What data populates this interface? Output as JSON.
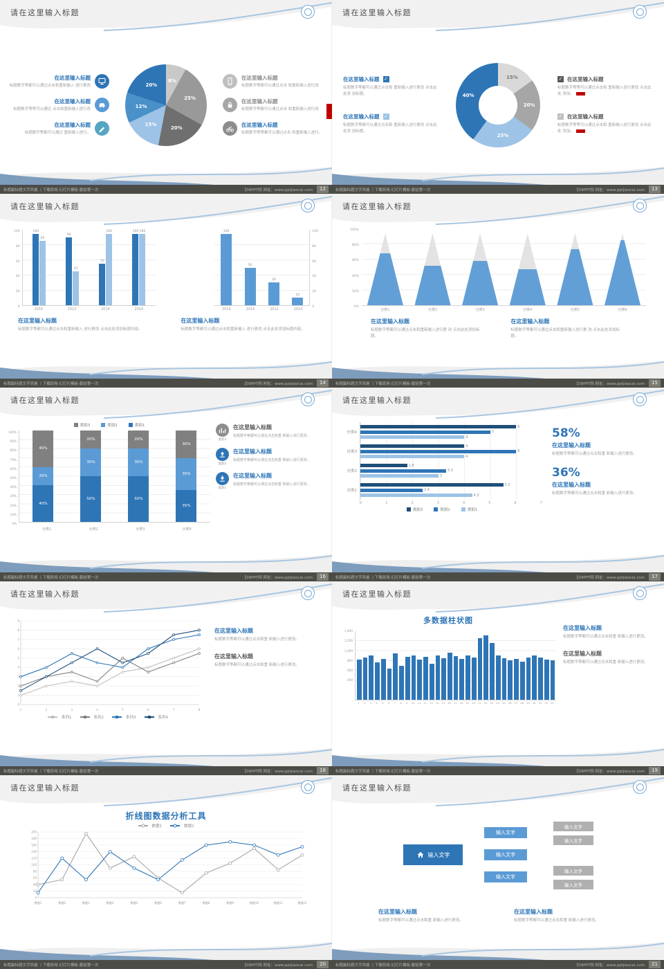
{
  "colors": {
    "accent": "#2e75b6",
    "accent_mid": "#5b9bd5",
    "accent_light": "#9dc3e6",
    "dark_blue": "#1f4e79",
    "gray": "#8c8c8c",
    "red": "#c00000"
  },
  "page": {
    "footer_left": "标题副标题文字风格 丨下载即用·幻灯片模板·献给第一次",
    "footer_right": "【09PPT网 网址：www.pptjiaocai.com"
  },
  "slides": [
    {
      "title": "请在这里输入标题",
      "page": "12",
      "type": "pie_callouts",
      "left_items": [
        {
          "heading": "在这里输入标题",
          "body": "标题数字等都可以通过点击和重新输入 进行更改",
          "icon": "monitor-icon",
          "icon_color": "#2e75b6"
        },
        {
          "heading": "在这里输入标题",
          "body": "标题数字等等可以通过 点击和重新输入进行改",
          "icon": "car-icon",
          "icon_color": "#5b9bd5"
        },
        {
          "heading": "在这里输入标题",
          "body": "标题数字等都可以通过 重新输入进行。",
          "icon": "pen-icon",
          "icon_color": "#56a6c3"
        }
      ],
      "right_items": [
        {
          "heading": "在这里输入标题",
          "body": "标题数字等都可以通过点击 和重新输入进行改",
          "icon": "phone-icon",
          "icon_color": "#bfbfbf",
          "muted": true
        },
        {
          "heading": "在这里输入标题",
          "body": "标题数字等都可以通过点击 和重新输入进行改",
          "icon": "lock-icon",
          "icon_color": "#a6a6a6",
          "muted": true
        },
        {
          "heading": "在这里输入标题",
          "body": "标题数字等等都可以通过点击 和重新输入进行。",
          "icon": "bike-icon",
          "icon_color": "#8c8c8c",
          "muted": false
        }
      ],
      "chart_data": {
        "type": "pie",
        "slices": [
          {
            "label": "8%",
            "value": 8,
            "color": "#c9c9c9"
          },
          {
            "label": "25%",
            "value": 25,
            "color": "#999999"
          },
          {
            "label": "20%",
            "value": 20,
            "color": "#6f6f6f"
          },
          {
            "label": "15%",
            "value": 15,
            "color": "#9dc3e6"
          },
          {
            "label": "12%",
            "value": 12,
            "color": "#4a90c9"
          },
          {
            "label": "20%",
            "value": 20,
            "color": "#2e75b6"
          }
        ]
      }
    },
    {
      "title": "请在这里输入标题",
      "page": "13",
      "type": "donut_checks",
      "left_items": [
        {
          "heading": "在这里输入标题",
          "body": "标题数字等都可以通过点击和 重新输入进行更改 点击此处添 加标题。",
          "check_color": "#2e75b6"
        },
        {
          "heading": "在这里输入标题",
          "body": "标题数字等都可以通过点击和 重新输入进行更改 点击此处添 加标题。",
          "check_color": "#9dc3e6"
        }
      ],
      "right_items": [
        {
          "heading": "在这里输入标题",
          "body": "标题数字等等可以通过点击和 重新输入进行更改 点击此处 添加。",
          "check_color": "#595959"
        },
        {
          "heading": "在这里输入标题",
          "body": "标题数字等等可以通过点击和 重新输入进行更改 点击此处 添加。",
          "check_color": "#bfbfbf"
        }
      ],
      "chart_data": {
        "type": "donut",
        "slices": [
          {
            "label": "15%",
            "value": 15,
            "color": "#d9d9d9",
            "dark": true
          },
          {
            "label": "20%",
            "value": 20,
            "color": "#a6a6a6"
          },
          {
            "label": "25%",
            "value": 25,
            "color": "#9dc3e6"
          },
          {
            "label": "40%",
            "value": 40,
            "color": "#2e75b6"
          }
        ]
      }
    },
    {
      "title": "请在这里输入标题",
      "page": "14",
      "type": "two_bars",
      "blocks": [
        {
          "heading": "在这里输入标题",
          "body": "标题数字等都可以通过点击和重新输入 进行更改 点击此处添加标题内容。"
        },
        {
          "heading": "在这里输入标题",
          "body": "标题数字等都可以通过点击和重新输入 进行更改 点击此处添加标题内容。"
        }
      ],
      "chart_data": [
        {
          "type": "bar",
          "categories": [
            "2010",
            "2012",
            "2014",
            "2016"
          ],
          "series": [
            {
              "name": "系列1",
              "color": "#2e75b6",
              "values": [
                100,
                90,
                55,
                100
              ]
            },
            {
              "name": "系列2",
              "color": "#9dc3e6",
              "values": [
                85,
                45,
                100,
                100
              ]
            }
          ],
          "ylim": [
            0,
            100
          ],
          "yticks": [
            "0",
            "20",
            "40",
            "60",
            "80",
            "100"
          ]
        },
        {
          "type": "bar",
          "categories": [
            "2016",
            "2014",
            "2012",
            "2010"
          ],
          "series": [
            {
              "name": "系列1",
              "color": "#5b9bd5",
              "values": [
                100,
                50,
                30,
                10
              ]
            }
          ],
          "ylim": [
            0,
            100
          ],
          "yticks": [
            "0",
            "20",
            "40",
            "60",
            "80",
            "100"
          ],
          "axis": "right"
        }
      ]
    },
    {
      "title": "请在这里输入标题",
      "page": "15",
      "type": "pyramids",
      "blocks": [
        {
          "heading": "在这里输入标题",
          "body": "标题数字等都可以通过点击和重新输入进行更 改 点击此处添加标题。"
        },
        {
          "heading": "在这里输入标题",
          "body": "标题数字等都可以通过点击和重新输入进行更 改 点击此处添加标题。"
        }
      ],
      "chart_data": {
        "type": "pyramid",
        "categories": [
          "分类1",
          "分类2",
          "分类3",
          "分类4",
          "分类5",
          "分类6"
        ],
        "values": [
          0.72,
          0.55,
          0.62,
          0.5,
          0.78,
          0.9
        ],
        "ylim": [
          0,
          1
        ],
        "yticks": [
          "0%",
          "20%",
          "40%",
          "60%",
          "80%",
          "100%"
        ]
      }
    },
    {
      "title": "请在这里输入标题",
      "page": "16",
      "type": "stacked",
      "legend": [
        {
          "label": "类别3",
          "color": "#808080"
        },
        {
          "label": "类别2",
          "color": "#5b9bd5"
        },
        {
          "label": "类别1",
          "color": "#2e75b6"
        }
      ],
      "right_items": [
        {
          "heading": "在这里输入标题",
          "body": "标题数字等都可以通过点击和重 新输入进行更改。",
          "icon": "bar-chart-icon",
          "icon_color": "#8c8c8c",
          "caption": "类别3",
          "muted": true
        },
        {
          "heading": "在这里输入标题",
          "body": "标题数字等都可以通过点击和重 新输入进行更改。",
          "icon": "upload-icon",
          "icon_color": "#2e75b6",
          "caption": "类别2",
          "muted": false
        },
        {
          "heading": "在这里输入标题",
          "body": "标题数字等都可以通过点击和重 新输入进行更改。",
          "icon": "download-icon",
          "icon_color": "#2e75b6",
          "caption": "类别1",
          "muted": false
        }
      ],
      "chart_data": {
        "type": "stacked_bar",
        "categories": [
          "分类1",
          "分类2",
          "分类3",
          "分类4"
        ],
        "series": [
          {
            "name": "类别1",
            "color": "#2e75b6",
            "values": [
              40,
              50,
              50,
              35
            ]
          },
          {
            "name": "类别2",
            "color": "#5b9bd5",
            "values": [
              20,
              30,
              30,
              35
            ]
          },
          {
            "name": "类别3",
            "color": "#808080",
            "values": [
              40,
              20,
              20,
              30
            ]
          }
        ],
        "ylim": [
          0,
          100
        ],
        "ytick_step": 10
      }
    },
    {
      "title": "请在这里输入标题",
      "page": "17",
      "type": "hbars",
      "stats": [
        {
          "value": "58%",
          "heading": "在这里输入标题",
          "body": "标题数字等都可以通过点击和重 新输入进行更改。"
        },
        {
          "value": "36%",
          "heading": "在这里输入标题",
          "body": "标题数字等都可以通过点击和重 新输入进行更改。"
        }
      ],
      "chart_data": {
        "type": "bar_horizontal",
        "categories": [
          "分类4",
          "分类3",
          "分类2",
          "分类1"
        ],
        "series": [
          {
            "name": "类别3",
            "color": "#1f4e79",
            "values": [
              6,
              4,
              1.8,
              5.5
            ]
          },
          {
            "name": "类别2",
            "color": "#2e75b6",
            "values": [
              5,
              6,
              3.3,
              2.4
            ]
          },
          {
            "name": "类别1",
            "color": "#9dc3e6",
            "values": [
              4,
              4,
              3,
              4.3
            ]
          }
        ],
        "xlim": [
          0,
          7
        ],
        "xticks": [
          "0",
          "1",
          "2",
          "3",
          "4",
          "5",
          "6",
          "7"
        ]
      }
    },
    {
      "title": "请在这里输入标题",
      "page": "18",
      "type": "line_right",
      "blocks": [
        {
          "heading": "在这里输入标题",
          "body": "标题数字等都可以通过点击和重 新输入进行更改。",
          "accent": true
        },
        {
          "heading": "在这里输入标题",
          "body": "标题数字等都可以通过点击和重 新输入进行更改。",
          "accent": false
        }
      ],
      "chart_data": {
        "type": "line",
        "x": [
          "1",
          "2",
          "3",
          "4",
          "5",
          "6",
          "7",
          "8"
        ],
        "series": [
          {
            "name": "系列1",
            "color": "#bfbfbf",
            "values": [
              1,
              2,
              2.5,
              2,
              3.5,
              4,
              5,
              6
            ]
          },
          {
            "name": "系列2",
            "color": "#7f7f7f",
            "values": [
              2,
              3,
              3.5,
              2.5,
              5,
              3.5,
              4.5,
              5.5
            ]
          },
          {
            "name": "系列3",
            "color": "#2e75b6",
            "values": [
              3,
              4,
              5.5,
              4.5,
              4,
              6,
              7,
              7.5
            ]
          },
          {
            "name": "系列4",
            "color": "#1f4e79",
            "values": [
              1.5,
              3,
              4.5,
              6,
              4.5,
              5.5,
              7.5,
              8
            ]
          }
        ],
        "ylim": [
          0,
          9
        ],
        "ytick_step": 1,
        "legend_position": "bottom"
      }
    },
    {
      "title": "请在这里输入标题",
      "page": "19",
      "type": "bars33",
      "chart_title": "多数据柱状图",
      "blocks": [
        {
          "heading": "在这里输入标题",
          "body": "标题数字等都可以通过点击和重 新输入进行更改。",
          "accent": true
        },
        {
          "heading": "在这里输入标题",
          "body": "标题数字等都可以通过点击和重 新输入进行更改。",
          "accent": false
        }
      ],
      "chart_data": {
        "type": "bar",
        "color": "#2e75b6",
        "categories": [
          "1",
          "2",
          "3",
          "4",
          "5",
          "6",
          "7",
          "8",
          "9",
          "10",
          "11",
          "12",
          "13",
          "14",
          "15",
          "16",
          "17",
          "18",
          "19",
          "20",
          "21",
          "22",
          "23",
          "24",
          "25",
          "26",
          "27",
          "28",
          "29",
          "30",
          "31",
          "32",
          "33"
        ],
        "values": [
          820,
          860,
          900,
          760,
          830,
          640,
          950,
          700,
          870,
          910,
          820,
          880,
          740,
          900,
          850,
          960,
          890,
          830,
          910,
          860,
          1260,
          1310,
          1160,
          910,
          850,
          800,
          830,
          780,
          860,
          900,
          860,
          820,
          800
        ],
        "ylim": [
          0,
          1400
        ],
        "yticks": [
          "400",
          "600",
          "800",
          "1,000",
          "1,200",
          "1,400"
        ]
      }
    },
    {
      "title": "请在这里输入标题",
      "page": "20",
      "type": "line_full",
      "chart_title": "折线图数据分析工具",
      "chart_data": {
        "type": "line",
        "x": [
          "数据1",
          "数据2",
          "数据3",
          "数据4",
          "数据5",
          "数据6",
          "数据7",
          "数据8",
          "数据9",
          "数据10",
          "数据11",
          "数据12"
        ],
        "series": [
          {
            "name": "数据1",
            "color": "#a6a6a6",
            "values": [
              40,
              55,
              195,
              90,
              125,
              60,
              15,
              75,
              105,
              150,
              85,
              130
            ]
          },
          {
            "name": "数据2",
            "color": "#2e75b6",
            "values": [
              15,
              120,
              55,
              140,
              90,
              55,
              115,
              160,
              170,
              160,
              130,
              155
            ]
          }
        ],
        "ylim": [
          0,
          200
        ],
        "ytick_step": 20,
        "legend_position": "top"
      }
    },
    {
      "title": "请在这里输入标题",
      "page": "21",
      "type": "diagram",
      "root": {
        "label": "输入文字",
        "icon": "home-icon"
      },
      "mid_boxes": [
        "输入文字",
        "输入文字",
        "输入文字"
      ],
      "leaf_boxes_top": [
        "输入文字",
        "输入文字"
      ],
      "leaf_boxes_bottom": [
        "输入文字",
        "输入文字"
      ],
      "blocks": [
        {
          "heading": "在这里输入标题",
          "body": "标题数字等都可以通过点击和重 新输入进行更改。"
        },
        {
          "heading": "在这里输入标题",
          "body": "标题数字等都可以通过点击和重 新输入进行更改。"
        }
      ]
    }
  ]
}
